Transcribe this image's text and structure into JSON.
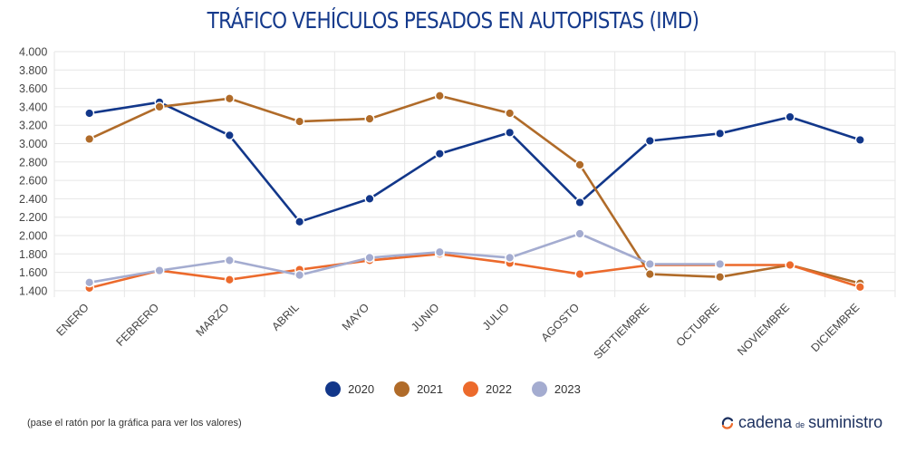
{
  "chart_data": {
    "type": "line",
    "title": "TRÁFICO VEHÍCULOS PESADOS EN AUTOPISTAS (IMD)",
    "categories": [
      "ENERO",
      "FEBRERO",
      "MARZO",
      "ABRIL",
      "MAYO",
      "JUNIO",
      "JULIO",
      "AGOSTO",
      "SEPTIEMBRE",
      "OCTUBRE",
      "NOVIEMBRE",
      "DICIEMBRE"
    ],
    "yticks": [
      "1.400",
      "1.600",
      "1.800",
      "2.000",
      "2.200",
      "2.400",
      "2.600",
      "2.800",
      "3.000",
      "3.200",
      "3.400",
      "3.600",
      "3.800",
      "4.000"
    ],
    "ylim": [
      1330,
      4000
    ],
    "grid": true,
    "legend_position": "bottom",
    "series": [
      {
        "name": "2020",
        "color": "#12378a",
        "values": [
          3330,
          3450,
          3090,
          2150,
          2400,
          2890,
          3120,
          2360,
          3030,
          3110,
          3290,
          3040
        ]
      },
      {
        "name": "2021",
        "color": "#b06b29",
        "values": [
          3050,
          3400,
          3490,
          3240,
          3270,
          3520,
          3330,
          2770,
          1580,
          1550,
          1680,
          1480
        ]
      },
      {
        "name": "2022",
        "color": "#ec6a2c",
        "values": [
          1430,
          1620,
          1520,
          1630,
          1730,
          1800,
          1700,
          1580,
          1680,
          1680,
          1680,
          1440
        ]
      },
      {
        "name": "2023",
        "color": "#a4acd0",
        "values": [
          1490,
          1620,
          1730,
          1570,
          1760,
          1820,
          1760,
          2020,
          1690,
          1690,
          null,
          null
        ]
      }
    ]
  },
  "footer": {
    "note": "(pase el ratón por la gráfica para ver los valores)",
    "brand_part1": "cadena",
    "brand_part2": "de",
    "brand_part3": "suministro"
  }
}
